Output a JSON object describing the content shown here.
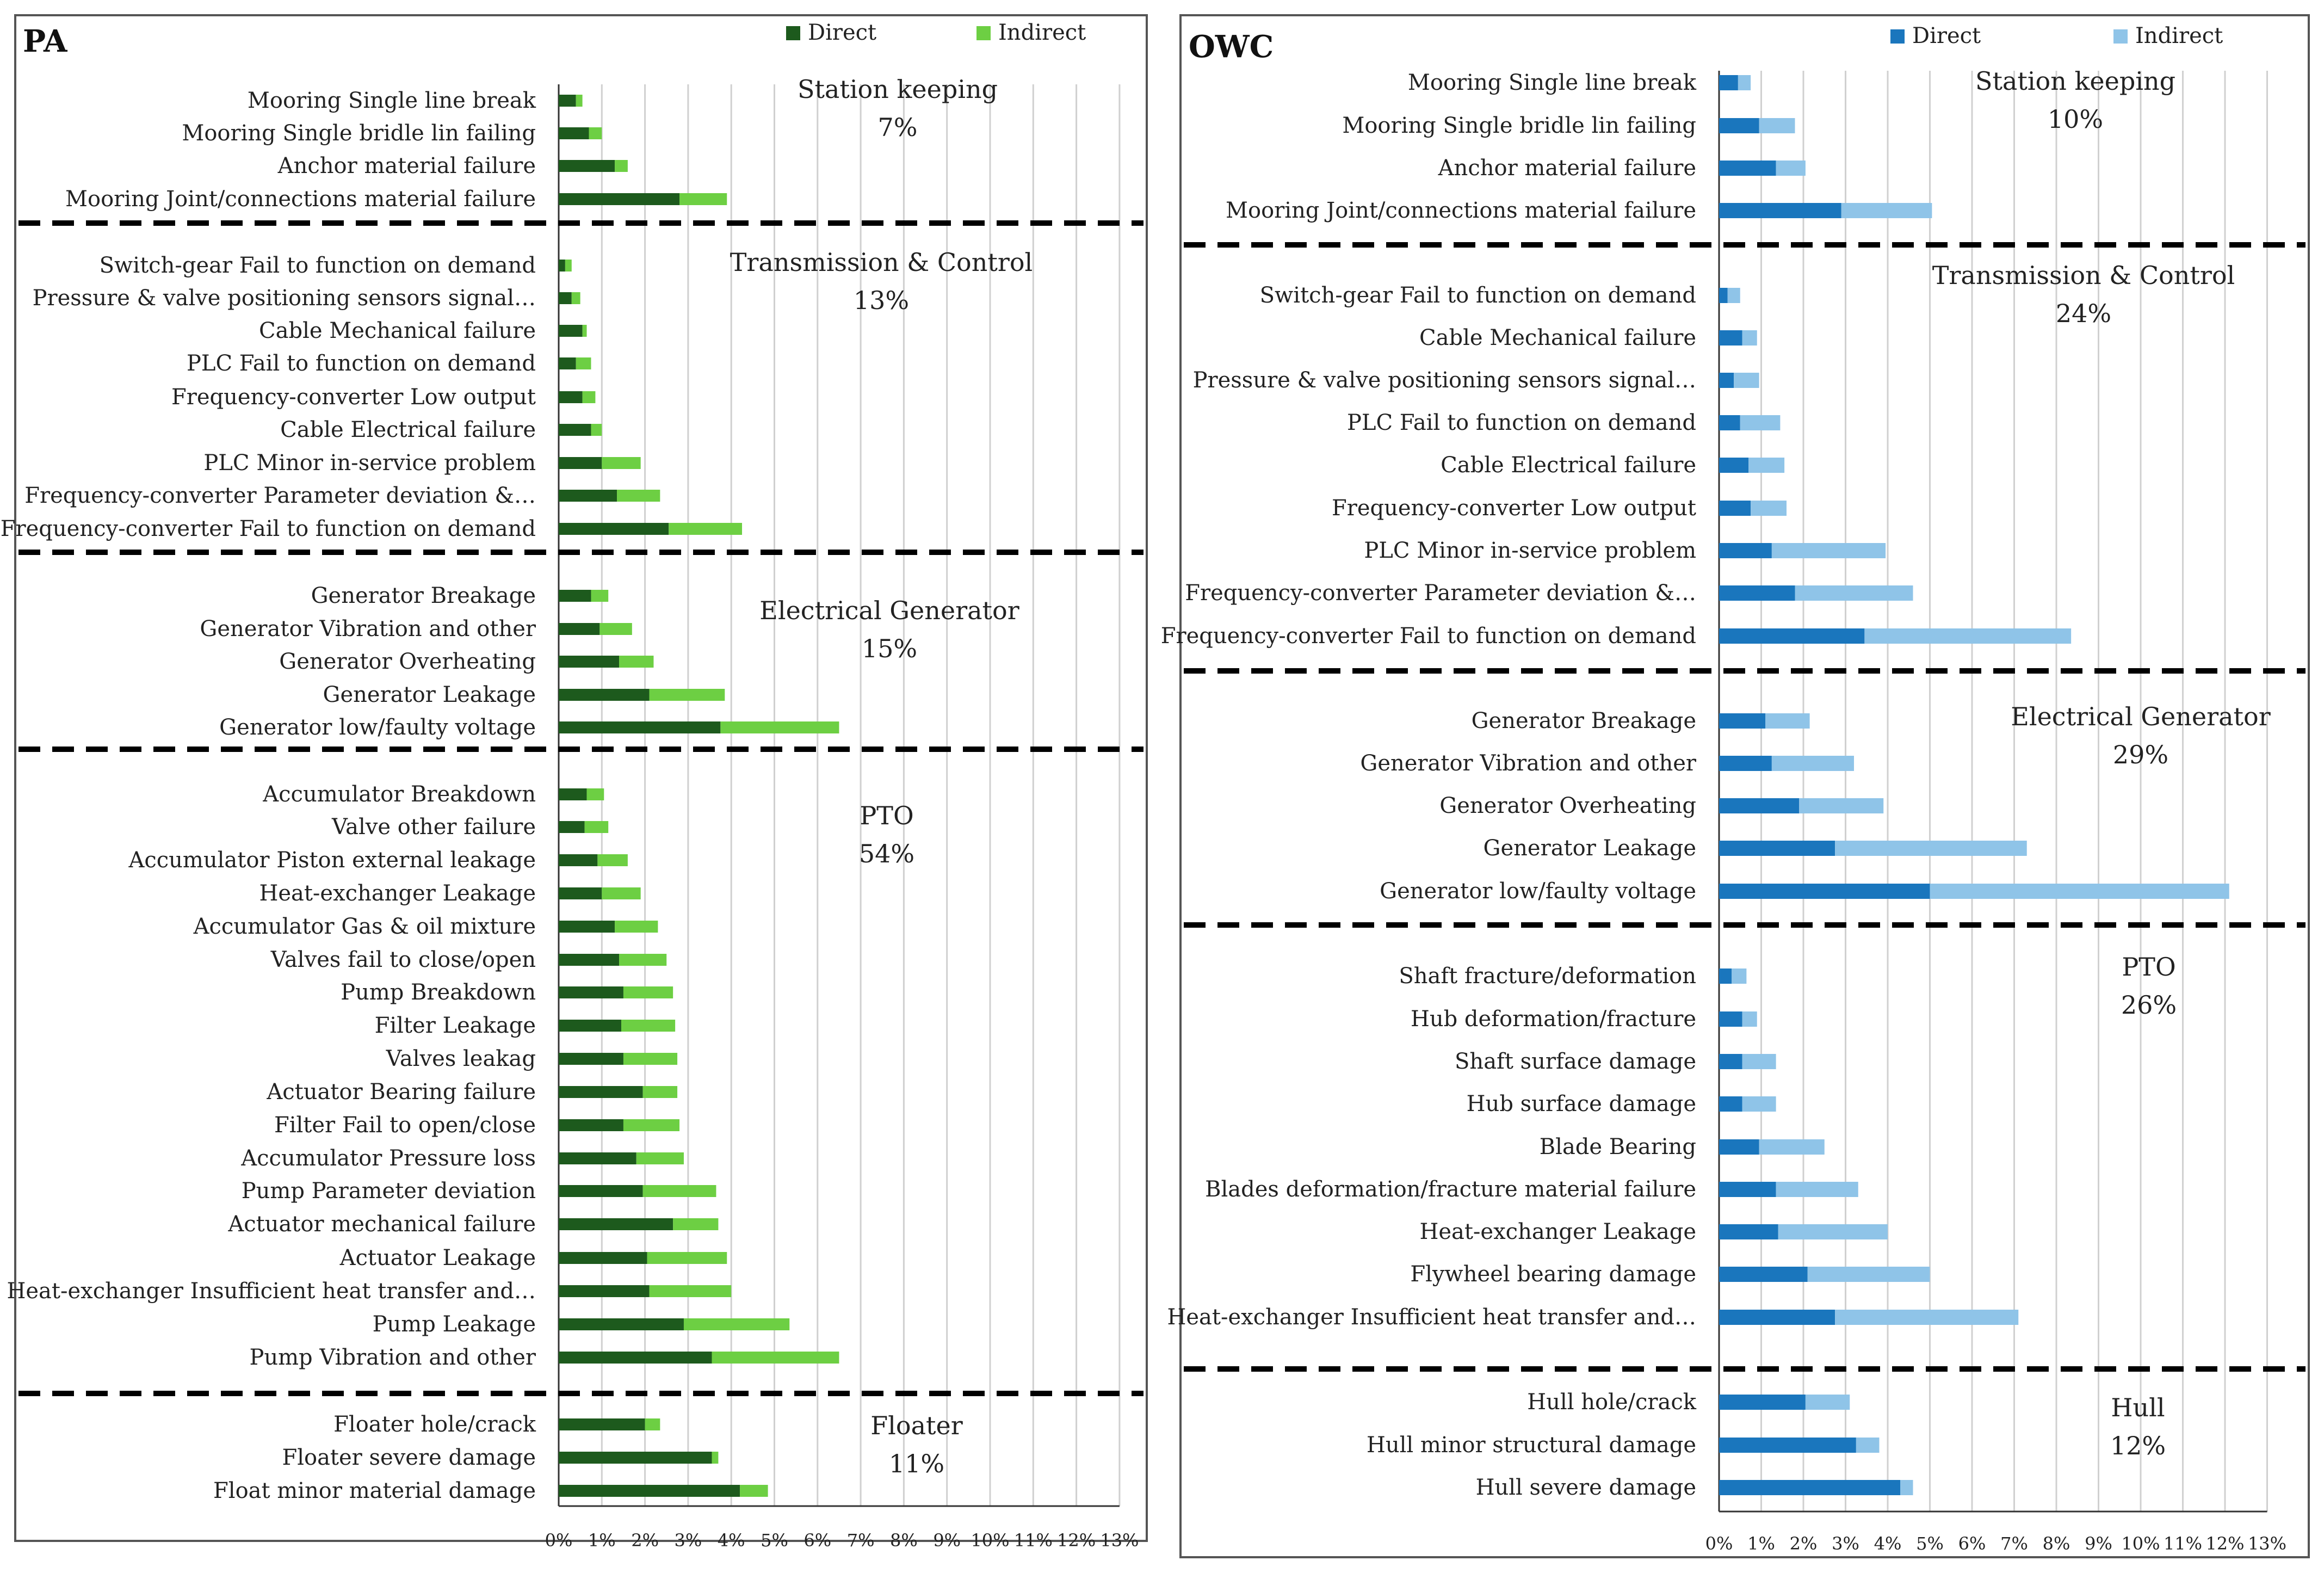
{
  "chart_data": [
    {
      "type": "bar",
      "orientation": "horizontal",
      "stacked": true,
      "title": "PA",
      "xlim": [
        0,
        13
      ],
      "x_ticks": [
        "0%",
        "1%",
        "2%",
        "3%",
        "4%",
        "5%",
        "6%",
        "7%",
        "8%",
        "9%",
        "10%",
        "11%",
        "12%",
        "13%"
      ],
      "legend": {
        "position": "top-right",
        "series": [
          "Direct",
          "Indirect"
        ]
      },
      "colors": {
        "Direct": "#1d5a1d",
        "Indirect": "#6dcf43"
      },
      "groups": [
        {
          "name": "Station keeping",
          "pct": "7%",
          "bars": [
            {
              "label": "Mooring Single line break",
              "direct": 0.4,
              "indirect": 0.15
            },
            {
              "label": "Mooring Single bridle lin failing",
              "direct": 0.7,
              "indirect": 0.3
            },
            {
              "label": "Anchor material failure",
              "direct": 1.3,
              "indirect": 0.3
            },
            {
              "label": "Mooring Joint/connections material failure",
              "direct": 2.8,
              "indirect": 1.1
            }
          ]
        },
        {
          "name": "Transmission & Control",
          "pct": "13%",
          "bars": [
            {
              "label": "Switch-gear Fail to function on demand",
              "direct": 0.15,
              "indirect": 0.15
            },
            {
              "label": "Pressure & valve positioning sensors signal…",
              "direct": 0.3,
              "indirect": 0.2
            },
            {
              "label": "Cable Mechanical failure",
              "direct": 0.55,
              "indirect": 0.1
            },
            {
              "label": "PLC Fail to function on demand",
              "direct": 0.4,
              "indirect": 0.35
            },
            {
              "label": "Frequency-converter Low output",
              "direct": 0.55,
              "indirect": 0.3
            },
            {
              "label": "Cable Electrical failure",
              "direct": 0.75,
              "indirect": 0.25
            },
            {
              "label": "PLC Minor in-service problem",
              "direct": 1.0,
              "indirect": 0.9
            },
            {
              "label": "Frequency-converter Parameter deviation &…",
              "direct": 1.35,
              "indirect": 1.0
            },
            {
              "label": "Frequency-converter Fail to function on demand",
              "direct": 2.55,
              "indirect": 1.7
            }
          ]
        },
        {
          "name": "Electrical Generator",
          "pct": "15%",
          "bars": [
            {
              "label": "Generator Breakage",
              "direct": 0.75,
              "indirect": 0.4
            },
            {
              "label": "Generator Vibration and other",
              "direct": 0.95,
              "indirect": 0.75
            },
            {
              "label": "Generator Overheating",
              "direct": 1.4,
              "indirect": 0.8
            },
            {
              "label": "Generator Leakage",
              "direct": 2.1,
              "indirect": 1.75
            },
            {
              "label": "Generator low/faulty voltage",
              "direct": 3.75,
              "indirect": 2.75
            }
          ]
        },
        {
          "name": "PTO",
          "pct": "54%",
          "bars": [
            {
              "label": "Accumulator Breakdown",
              "direct": 0.65,
              "indirect": 0.4
            },
            {
              "label": "Valve other failure",
              "direct": 0.6,
              "indirect": 0.55
            },
            {
              "label": "Accumulator Piston external leakage",
              "direct": 0.9,
              "indirect": 0.7
            },
            {
              "label": "Heat-exchanger Leakage",
              "direct": 1.0,
              "indirect": 0.9
            },
            {
              "label": "Accumulator Gas & oil mixture",
              "direct": 1.3,
              "indirect": 1.0
            },
            {
              "label": "Valves fail to close/open",
              "direct": 1.4,
              "indirect": 1.1
            },
            {
              "label": "Pump Breakdown",
              "direct": 1.5,
              "indirect": 1.15
            },
            {
              "label": "Filter Leakage",
              "direct": 1.45,
              "indirect": 1.25
            },
            {
              "label": "Valves leakag",
              "direct": 1.5,
              "indirect": 1.25
            },
            {
              "label": "Actuator Bearing failure",
              "direct": 1.95,
              "indirect": 0.8
            },
            {
              "label": "Filter Fail to open/close",
              "direct": 1.5,
              "indirect": 1.3
            },
            {
              "label": "Accumulator Pressure loss",
              "direct": 1.8,
              "indirect": 1.1
            },
            {
              "label": "Pump Parameter deviation",
              "direct": 1.95,
              "indirect": 1.7
            },
            {
              "label": "Actuator  mechanical failure",
              "direct": 2.65,
              "indirect": 1.05
            },
            {
              "label": "Actuator Leakage",
              "direct": 2.05,
              "indirect": 1.85
            },
            {
              "label": "Heat-exchanger Insufficient heat transfer and…",
              "direct": 2.1,
              "indirect": 1.9
            },
            {
              "label": "Pump Leakage",
              "direct": 2.9,
              "indirect": 2.45
            },
            {
              "label": "Pump Vibration and other",
              "direct": 3.55,
              "indirect": 2.95
            }
          ]
        },
        {
          "name": "Floater",
          "pct": "11%",
          "bars": [
            {
              "label": "Floater hole/crack",
              "direct": 2.0,
              "indirect": 0.35
            },
            {
              "label": "Floater severe damage",
              "direct": 3.55,
              "indirect": 0.15
            },
            {
              "label": "Float minor material damage",
              "direct": 4.2,
              "indirect": 0.65
            }
          ]
        }
      ]
    },
    {
      "type": "bar",
      "orientation": "horizontal",
      "stacked": true,
      "title": "OWC",
      "xlim": [
        0,
        13
      ],
      "x_ticks": [
        "0%",
        "1%",
        "2%",
        "3%",
        "4%",
        "5%",
        "6%",
        "7%",
        "8%",
        "9%",
        "10%",
        "11%",
        "12%",
        "13%"
      ],
      "legend": {
        "position": "top-right",
        "series": [
          "Direct",
          "Indirect"
        ]
      },
      "colors": {
        "Direct": "#1a76bd",
        "Indirect": "#8fc4e8"
      },
      "groups": [
        {
          "name": "Station keeping",
          "pct": "10%",
          "bars": [
            {
              "label": "Mooring Single line break",
              "direct": 0.45,
              "indirect": 0.3
            },
            {
              "label": "Mooring Single bridle lin failing",
              "direct": 0.95,
              "indirect": 0.85
            },
            {
              "label": "Anchor material failure",
              "direct": 1.35,
              "indirect": 0.7
            },
            {
              "label": "Mooring Joint/connections material failure",
              "direct": 2.9,
              "indirect": 2.15
            }
          ]
        },
        {
          "name": "Transmission & Control",
          "pct": "24%",
          "bars": [
            {
              "label": "Switch-gear Fail to function on demand",
              "direct": 0.2,
              "indirect": 0.3
            },
            {
              "label": "Cable Mechanical failure",
              "direct": 0.55,
              "indirect": 0.35
            },
            {
              "label": "Pressure & valve positioning sensors signal…",
              "direct": 0.35,
              "indirect": 0.6
            },
            {
              "label": "PLC Fail to function on demand",
              "direct": 0.5,
              "indirect": 0.95
            },
            {
              "label": "Cable Electrical failure",
              "direct": 0.7,
              "indirect": 0.85
            },
            {
              "label": "Frequency-converter Low output",
              "direct": 0.75,
              "indirect": 0.85
            },
            {
              "label": "PLC Minor in-service problem",
              "direct": 1.25,
              "indirect": 2.7
            },
            {
              "label": "Frequency-converter Parameter deviation &…",
              "direct": 1.8,
              "indirect": 2.8
            },
            {
              "label": "Frequency-converter Fail to function on demand",
              "direct": 3.45,
              "indirect": 4.9
            }
          ]
        },
        {
          "name": "Electrical Generator",
          "pct": "29%",
          "bars": [
            {
              "label": "Generator Breakage",
              "direct": 1.1,
              "indirect": 1.05
            },
            {
              "label": "Generator Vibration and other",
              "direct": 1.25,
              "indirect": 1.95
            },
            {
              "label": "Generator Overheating",
              "direct": 1.9,
              "indirect": 2.0
            },
            {
              "label": "Generator Leakage",
              "direct": 2.75,
              "indirect": 4.55
            },
            {
              "label": "Generator low/faulty voltage",
              "direct": 5.0,
              "indirect": 7.1
            }
          ]
        },
        {
          "name": "PTO",
          "pct": "26%",
          "bars": [
            {
              "label": "Shaft fracture/deformation",
              "direct": 0.3,
              "indirect": 0.35
            },
            {
              "label": "Hub deformation/fracture",
              "direct": 0.55,
              "indirect": 0.35
            },
            {
              "label": "Shaft surface damage",
              "direct": 0.55,
              "indirect": 0.8
            },
            {
              "label": "Hub surface damage",
              "direct": 0.55,
              "indirect": 0.8
            },
            {
              "label": "Blade Bearing",
              "direct": 0.95,
              "indirect": 1.55
            },
            {
              "label": "Blades deformation/fracture material failure",
              "direct": 1.35,
              "indirect": 1.95
            },
            {
              "label": "Heat-exchanger Leakage",
              "direct": 1.4,
              "indirect": 2.6
            },
            {
              "label": "Flywheel bearing damage",
              "direct": 2.1,
              "indirect": 2.9
            },
            {
              "label": "Heat-exchanger Insufficient heat transfer and…",
              "direct": 2.75,
              "indirect": 4.35
            }
          ]
        },
        {
          "name": "Hull",
          "pct": "12%",
          "bars": [
            {
              "label": "Hull hole/crack",
              "direct": 2.05,
              "indirect": 1.05
            },
            {
              "label": "Hull minor structural damage",
              "direct": 3.25,
              "indirect": 0.55
            },
            {
              "label": "Hull severe damage",
              "direct": 4.3,
              "indirect": 0.3
            }
          ]
        }
      ]
    }
  ]
}
